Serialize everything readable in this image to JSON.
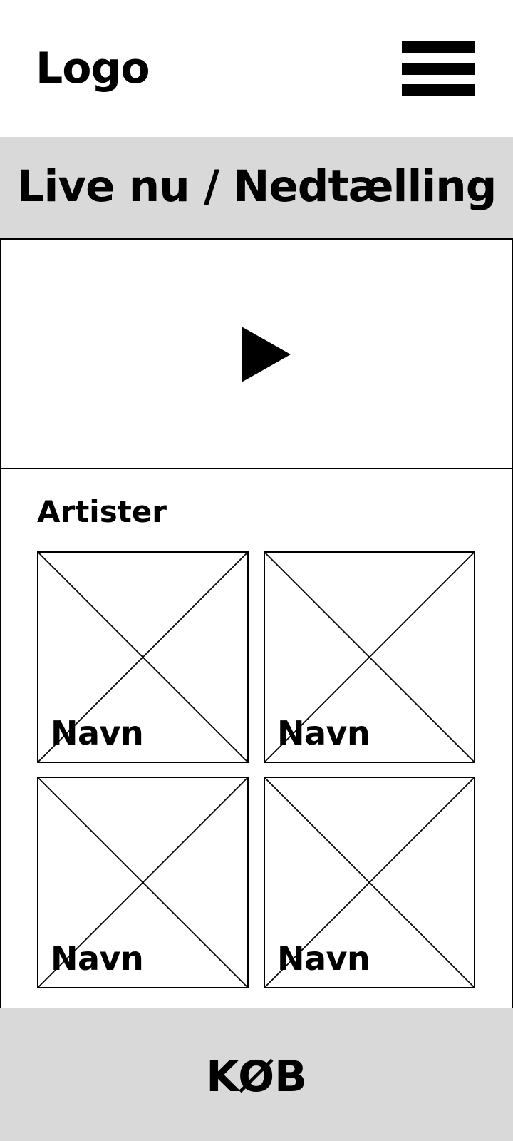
{
  "header": {
    "logo": "Logo",
    "menu_icon": "hamburger-menu-icon"
  },
  "banner": {
    "text": "Live nu / Nedtælling"
  },
  "video": {
    "play_icon": "play-icon"
  },
  "artists": {
    "title": "Artister",
    "items": [
      {
        "name": "Navn"
      },
      {
        "name": "Navn"
      },
      {
        "name": "Navn"
      },
      {
        "name": "Navn"
      }
    ]
  },
  "footer": {
    "buy_label": "KØB"
  },
  "colors": {
    "background": "#ffffff",
    "panel_gray": "#d9d9d9",
    "ink": "#000000"
  }
}
